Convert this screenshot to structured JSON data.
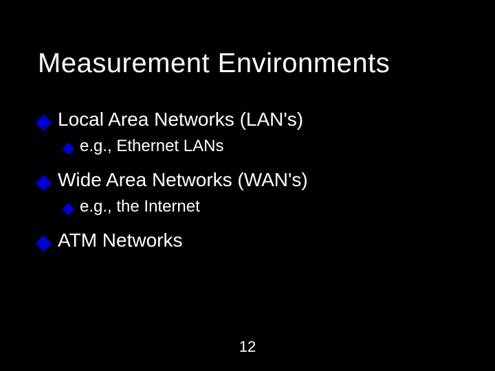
{
  "slide": {
    "title": "Measurement Environments",
    "background_color": "#000000",
    "title_color": "#ffffff",
    "title_fontsize": 40,
    "bullet_color": "#0000cc",
    "text_color": "#ffffff",
    "b1_fontsize": 28,
    "b2_fontsize": 24,
    "items": [
      {
        "level": 1,
        "text": "Local Area Networks (LAN's)",
        "children": [
          {
            "level": 2,
            "text": "e.g., Ethernet LANs"
          }
        ]
      },
      {
        "level": 1,
        "text": "Wide Area Networks (WAN's)",
        "children": [
          {
            "level": 2,
            "text": "e.g., the Internet"
          }
        ]
      },
      {
        "level": 1,
        "text": "ATM Networks",
        "children": []
      }
    ],
    "page_number": "12"
  }
}
